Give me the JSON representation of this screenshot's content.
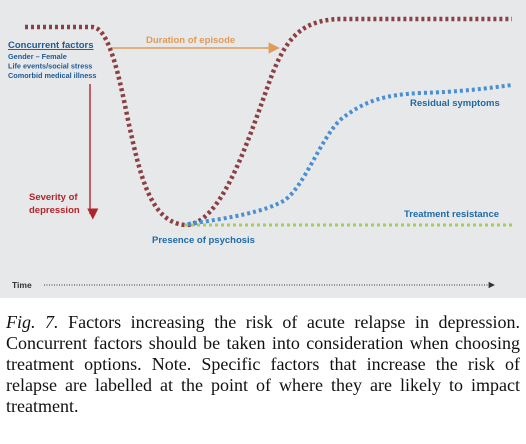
{
  "diagram": {
    "colors": {
      "background": "#e7e8e9",
      "severity_curve": "#8b4047",
      "residual_curve": "#4a8fd2",
      "resistance_line": "#a6cc5a",
      "duration_arrow": "#e09a5a",
      "severity_arrow": "#b2242c",
      "concurrent_text": "#1f5a96",
      "label_blue": "#1f6aa8",
      "time_axis": "#333333"
    },
    "labels": {
      "concurrent_title": "Concurrent factors",
      "concurrent_items": [
        "Gender – Female",
        "Life events/social stress",
        "Comorbid medical illness"
      ],
      "duration": "Duration of episode",
      "severity_line1": "Severity of",
      "severity_line2": "depression",
      "residual": "Residual symptoms",
      "resistance": "Treatment resistance",
      "psychosis": "Presence of psychosis",
      "time": "Time"
    }
  },
  "caption": {
    "figure_label": "Fig. 7.",
    "text": " Factors increasing the risk of acute relapse in depression. Concurrent factors should be taken into consideration when choosing treatment options. Note. Specific factors that increase the risk of relapse are labelled at the point of where they are likely to impact treatment."
  }
}
